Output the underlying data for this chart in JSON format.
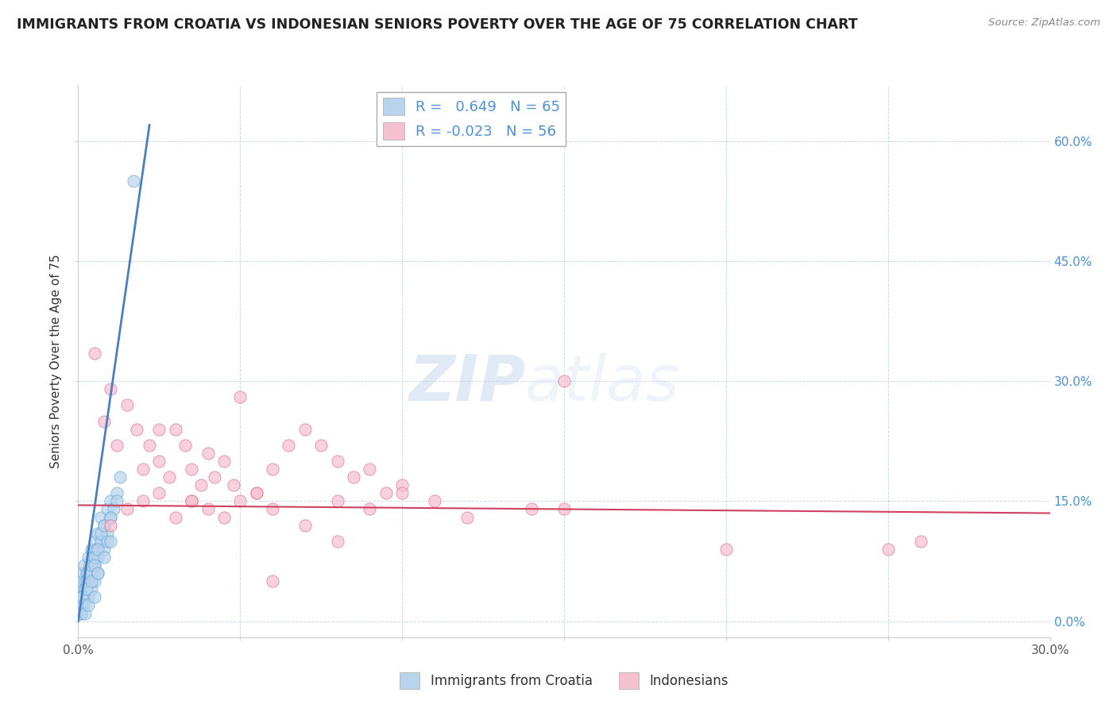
{
  "title": "IMMIGRANTS FROM CROATIA VS INDONESIAN SENIORS POVERTY OVER THE AGE OF 75 CORRELATION CHART",
  "source": "Source: ZipAtlas.com",
  "ylabel": "Seniors Poverty Over the Age of 75",
  "xmin": 0.0,
  "xmax": 0.3,
  "ymin": -0.02,
  "ymax": 0.67,
  "xtick_positions": [
    0.0,
    0.05,
    0.1,
    0.15,
    0.2,
    0.25,
    0.3
  ],
  "xtick_labels_show": [
    "0.0%",
    "",
    "",
    "",
    "",
    "",
    "30.0%"
  ],
  "ytick_positions": [
    0.0,
    0.15,
    0.3,
    0.45,
    0.6
  ],
  "ytick_labels_right": [
    "0.0%",
    "15.0%",
    "30.0%",
    "45.0%",
    "60.0%"
  ],
  "blue_R": 0.649,
  "blue_N": 65,
  "pink_R": -0.023,
  "pink_N": 56,
  "blue_fill_color": "#b8d4ec",
  "pink_fill_color": "#f5c0d0",
  "blue_edge_color": "#5a9fd4",
  "pink_edge_color": "#e06080",
  "blue_line_color": "#4a7fc0",
  "pink_line_color": "#d04060",
  "legend_label_blue": "Immigrants from Croatia",
  "legend_label_pink": "Indonesians",
  "watermark_zip": "ZIP",
  "watermark_atlas": "atlas",
  "background_color": "#ffffff",
  "grid_color": "#c8d4e8",
  "blue_trendline_x": [
    0.0,
    0.022
  ],
  "blue_trendline_y": [
    0.0,
    0.62
  ],
  "pink_trendline_x": [
    0.0,
    0.3
  ],
  "pink_trendline_y": [
    0.145,
    0.135
  ],
  "blue_x": [
    0.0008,
    0.001,
    0.0012,
    0.0015,
    0.0018,
    0.002,
    0.0022,
    0.0025,
    0.003,
    0.003,
    0.0035,
    0.004,
    0.004,
    0.0045,
    0.005,
    0.005,
    0.0055,
    0.006,
    0.006,
    0.007,
    0.007,
    0.008,
    0.008,
    0.009,
    0.009,
    0.01,
    0.01,
    0.011,
    0.012,
    0.013,
    0.0005,
    0.0008,
    0.001,
    0.0012,
    0.0015,
    0.002,
    0.0025,
    0.003,
    0.003,
    0.004,
    0.004,
    0.005,
    0.005,
    0.006,
    0.006,
    0.007,
    0.008,
    0.009,
    0.01,
    0.012,
    0.0005,
    0.0008,
    0.001,
    0.0012,
    0.0015,
    0.002,
    0.0025,
    0.003,
    0.004,
    0.005,
    0.005,
    0.006,
    0.008,
    0.01,
    0.017
  ],
  "blue_y": [
    0.04,
    0.03,
    0.05,
    0.06,
    0.07,
    0.05,
    0.04,
    0.06,
    0.08,
    0.05,
    0.07,
    0.09,
    0.06,
    0.08,
    0.1,
    0.07,
    0.09,
    0.11,
    0.08,
    0.1,
    0.13,
    0.12,
    0.09,
    0.14,
    0.11,
    0.13,
    0.15,
    0.14,
    0.16,
    0.18,
    0.02,
    0.01,
    0.03,
    0.02,
    0.03,
    0.04,
    0.05,
    0.03,
    0.06,
    0.07,
    0.04,
    0.05,
    0.08,
    0.09,
    0.06,
    0.11,
    0.12,
    0.1,
    0.13,
    0.15,
    0.01,
    0.02,
    0.01,
    0.03,
    0.02,
    0.01,
    0.04,
    0.02,
    0.05,
    0.03,
    0.07,
    0.06,
    0.08,
    0.1,
    0.55
  ],
  "pink_x": [
    0.005,
    0.008,
    0.01,
    0.012,
    0.015,
    0.018,
    0.02,
    0.022,
    0.025,
    0.028,
    0.03,
    0.033,
    0.035,
    0.038,
    0.04,
    0.042,
    0.045,
    0.048,
    0.05,
    0.055,
    0.06,
    0.065,
    0.07,
    0.075,
    0.08,
    0.085,
    0.09,
    0.095,
    0.1,
    0.11,
    0.015,
    0.02,
    0.025,
    0.03,
    0.035,
    0.04,
    0.045,
    0.05,
    0.055,
    0.06,
    0.07,
    0.08,
    0.09,
    0.1,
    0.12,
    0.14,
    0.15,
    0.2,
    0.25,
    0.26,
    0.01,
    0.025,
    0.035,
    0.06,
    0.08,
    0.15
  ],
  "pink_y": [
    0.335,
    0.25,
    0.29,
    0.22,
    0.27,
    0.24,
    0.19,
    0.22,
    0.2,
    0.18,
    0.24,
    0.22,
    0.19,
    0.17,
    0.21,
    0.18,
    0.2,
    0.17,
    0.28,
    0.16,
    0.19,
    0.22,
    0.24,
    0.22,
    0.2,
    0.18,
    0.19,
    0.16,
    0.17,
    0.15,
    0.14,
    0.15,
    0.24,
    0.13,
    0.15,
    0.14,
    0.13,
    0.15,
    0.16,
    0.14,
    0.12,
    0.15,
    0.14,
    0.16,
    0.13,
    0.14,
    0.14,
    0.09,
    0.09,
    0.1,
    0.12,
    0.16,
    0.15,
    0.05,
    0.1,
    0.3
  ]
}
